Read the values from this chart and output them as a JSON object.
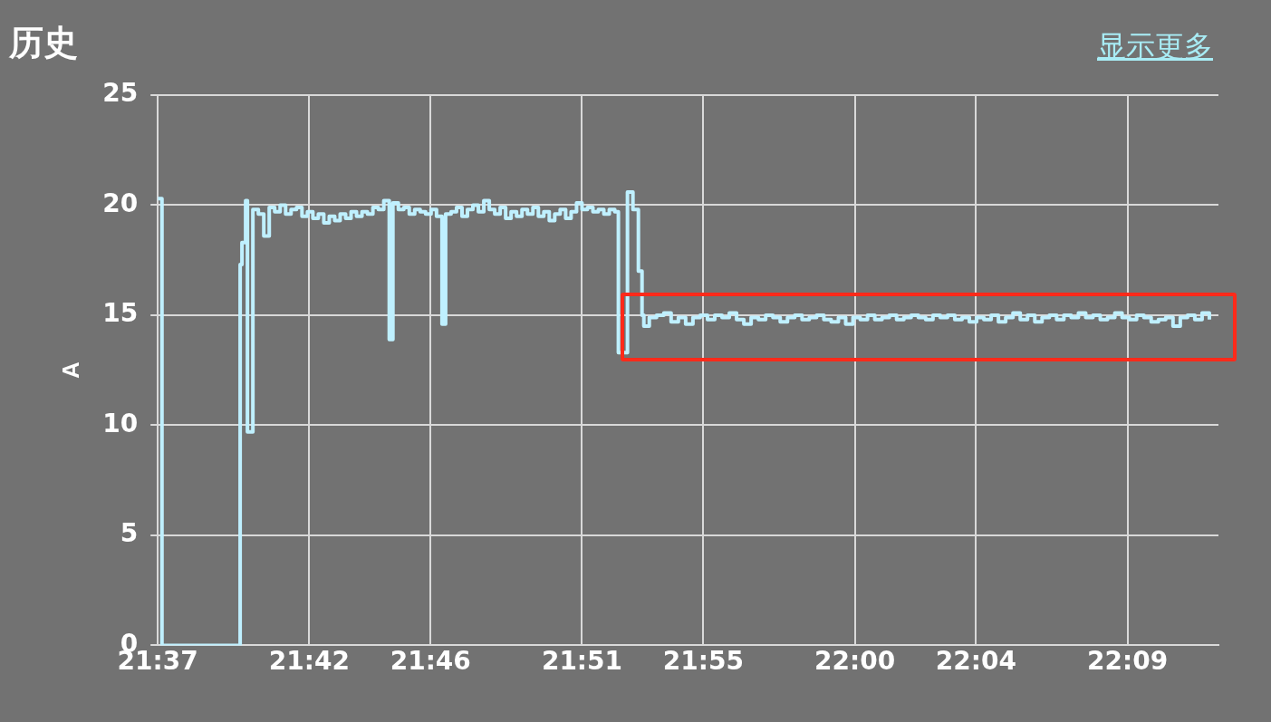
{
  "chart_data": {
    "type": "step",
    "title": "历史",
    "annotations": [
      "显示更多"
    ],
    "ylabel": "A",
    "xlim": [
      21.6167,
      22.2
    ],
    "xticks": [
      {
        "value": 21.6167,
        "label": "21:37"
      },
      {
        "value": 21.7,
        "label": "21:42"
      },
      {
        "value": 21.7667,
        "label": "21:46"
      },
      {
        "value": 21.85,
        "label": "21:51"
      },
      {
        "value": 21.9167,
        "label": "21:55"
      },
      {
        "value": 22.0,
        "label": "22:00"
      },
      {
        "value": 22.0667,
        "label": "22:04"
      },
      {
        "value": 22.15,
        "label": "22:09"
      }
    ],
    "ylim": [
      0,
      25
    ],
    "yticks": [
      0,
      5,
      10,
      15,
      20,
      25
    ],
    "grid": true,
    "legend": false,
    "marker": "none",
    "line_style": "solid",
    "series": [
      {
        "color": "#bff0ff",
        "x": [
          21.6167,
          21.619,
          21.662,
          21.663,
          21.665,
          21.666,
          21.669,
          21.672,
          21.675,
          21.678,
          21.681,
          21.684,
          21.687,
          21.69,
          21.693,
          21.696,
          21.699,
          21.702,
          21.705,
          21.708,
          21.711,
          21.714,
          21.717,
          21.72,
          21.723,
          21.726,
          21.729,
          21.732,
          21.735,
          21.738,
          21.741,
          21.744,
          21.746,
          21.749,
          21.752,
          21.755,
          21.758,
          21.761,
          21.764,
          21.767,
          21.77,
          21.773,
          21.775,
          21.778,
          21.781,
          21.784,
          21.787,
          21.79,
          21.793,
          21.796,
          21.799,
          21.802,
          21.805,
          21.808,
          21.811,
          21.814,
          21.817,
          21.82,
          21.823,
          21.826,
          21.829,
          21.832,
          21.835,
          21.838,
          21.841,
          21.844,
          21.847,
          21.85,
          21.853,
          21.856,
          21.859,
          21.862,
          21.865,
          21.868,
          21.87,
          21.875,
          21.878,
          21.881,
          21.883,
          21.884,
          21.887,
          21.891,
          21.895,
          21.899,
          21.903,
          21.907,
          21.911,
          21.915,
          21.919,
          21.923,
          21.927,
          21.931,
          21.935,
          21.939,
          21.943,
          21.947,
          21.951,
          21.955,
          21.959,
          21.963,
          21.967,
          21.971,
          21.975,
          21.979,
          21.983,
          21.987,
          21.991,
          21.995,
          21.999,
          22.003,
          22.007,
          22.011,
          22.015,
          22.019,
          22.023,
          22.027,
          22.031,
          22.035,
          22.039,
          22.043,
          22.047,
          22.051,
          22.055,
          22.059,
          22.063,
          22.067,
          22.071,
          22.075,
          22.079,
          22.083,
          22.087,
          22.091,
          22.095,
          22.099,
          22.103,
          22.107,
          22.111,
          22.115,
          22.119,
          22.123,
          22.127,
          22.131,
          22.135,
          22.139,
          22.143,
          22.147,
          22.151,
          22.155,
          22.159,
          22.163,
          22.167,
          22.171,
          22.175,
          22.179,
          22.183,
          22.187,
          22.191,
          22.195
        ],
        "values": [
          20.3,
          0,
          17.3,
          18.3,
          20.2,
          9.7,
          19.8,
          19.6,
          18.6,
          19.9,
          19.7,
          20.0,
          19.6,
          19.8,
          19.9,
          19.5,
          19.7,
          19.4,
          19.6,
          19.2,
          19.5,
          19.3,
          19.6,
          19.4,
          19.7,
          19.5,
          19.7,
          19.6,
          19.9,
          19.8,
          20.2,
          13.9,
          20.1,
          19.8,
          19.9,
          19.6,
          19.8,
          19.7,
          19.6,
          19.8,
          19.5,
          14.6,
          19.6,
          19.7,
          19.9,
          19.5,
          19.8,
          20.0,
          19.7,
          20.2,
          19.8,
          19.6,
          19.9,
          19.4,
          19.7,
          19.5,
          19.8,
          19.6,
          19.9,
          19.5,
          19.7,
          19.3,
          19.6,
          19.8,
          19.4,
          19.7,
          20.1,
          19.8,
          19.9,
          19.7,
          19.8,
          19.6,
          19.8,
          19.7,
          13.3,
          20.6,
          19.8,
          17.0,
          15.0,
          14.5,
          14.9,
          15.0,
          15.1,
          14.7,
          14.9,
          14.6,
          14.9,
          15.0,
          14.8,
          15.0,
          14.9,
          15.1,
          14.8,
          14.6,
          14.9,
          14.8,
          15.0,
          14.9,
          14.7,
          14.9,
          15.0,
          14.8,
          14.9,
          15.0,
          14.8,
          14.7,
          14.9,
          14.6,
          14.9,
          14.8,
          15.0,
          14.8,
          14.9,
          15.0,
          14.8,
          14.9,
          15.0,
          14.9,
          14.8,
          15.0,
          14.9,
          15.0,
          14.8,
          14.9,
          14.7,
          14.9,
          14.8,
          15.0,
          14.7,
          14.9,
          15.1,
          14.8,
          15.0,
          14.7,
          14.9,
          15.0,
          14.8,
          15.0,
          14.9,
          15.1,
          14.9,
          15.0,
          14.8,
          14.9,
          15.1,
          14.9,
          14.8,
          15.0,
          14.9,
          14.7,
          14.8,
          14.9,
          14.5,
          14.9,
          15.0,
          14.8,
          15.1,
          14.8
        ]
      }
    ]
  }
}
